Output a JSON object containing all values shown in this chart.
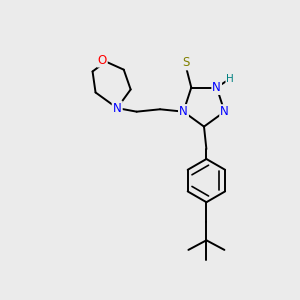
{
  "background_color": "#ebebeb",
  "bond_color": "#000000",
  "atom_colors": {
    "N": "#0000ff",
    "O": "#ff0000",
    "S": "#808000",
    "H": "#008080",
    "C": "#000000"
  },
  "figsize": [
    3.0,
    3.0
  ],
  "dpi": 100
}
